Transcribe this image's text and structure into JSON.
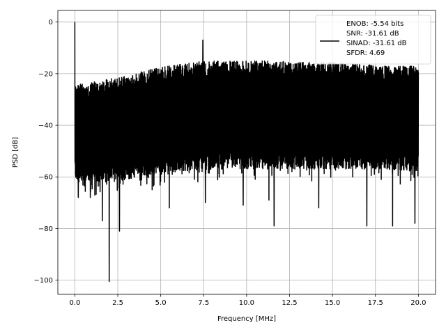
{
  "chart_data": {
    "type": "line",
    "title": "",
    "xlabel": "Frequency [MHz]",
    "ylabel": "PSD [dB]",
    "xlim": [
      -0.99,
      21.0
    ],
    "ylim": [
      -105.5,
      4.5
    ],
    "x_ticks": [
      0.0,
      2.5,
      5.0,
      7.5,
      10.0,
      12.5,
      15.0,
      17.5,
      20.0
    ],
    "x_tick_labels": [
      "0.0",
      "2.5",
      "5.0",
      "7.5",
      "10.0",
      "12.5",
      "15.0",
      "17.5",
      "20.0"
    ],
    "y_ticks": [
      0,
      -20,
      -40,
      -60,
      -80,
      -100
    ],
    "y_tick_labels": [
      "0",
      "−20",
      "−40",
      "−60",
      "−80",
      "−100"
    ],
    "grid": true,
    "legend_position": "top-right",
    "series": [
      {
        "name": "ENOB: -5.54 bits",
        "color": "#000000",
        "noise_band": {
          "x_range": [
            0.0,
            20.0
          ],
          "upper_envelope_x": [
            0.0,
            0.5,
            1.0,
            2.0,
            3.0,
            4.0,
            5.0,
            6.0,
            7.0,
            8.0,
            9.0,
            10.0,
            12.0,
            14.0,
            16.0,
            18.0,
            20.0
          ],
          "upper_envelope_y": [
            -24,
            -24,
            -23,
            -22,
            -21,
            -19,
            -17.5,
            -16.5,
            -15.5,
            -15,
            -15,
            -15,
            -15,
            -15.5,
            -16,
            -17,
            -17
          ],
          "lower_envelope_x": [
            0.0,
            2.0,
            4.0,
            6.0,
            8.0,
            10.0,
            12.0,
            14.0,
            16.0,
            18.0,
            20.0
          ],
          "lower_envelope_y": [
            -62,
            -62,
            -60,
            -58,
            -57,
            -57,
            -57,
            -57,
            -57,
            -57,
            -58
          ]
        },
        "peaks": [
          {
            "x": 0.0,
            "y": 0.0
          },
          {
            "x": 7.45,
            "y": -7.0
          }
        ],
        "dips": [
          {
            "x": 0.2,
            "y": -68
          },
          {
            "x": 0.9,
            "y": -68
          },
          {
            "x": 1.6,
            "y": -77
          },
          {
            "x": 2.0,
            "y": -100.5
          },
          {
            "x": 2.6,
            "y": -81
          },
          {
            "x": 4.5,
            "y": -65
          },
          {
            "x": 5.5,
            "y": -72
          },
          {
            "x": 7.6,
            "y": -70
          },
          {
            "x": 9.8,
            "y": -71
          },
          {
            "x": 11.3,
            "y": -69
          },
          {
            "x": 11.6,
            "y": -79
          },
          {
            "x": 14.2,
            "y": -72
          },
          {
            "x": 17.0,
            "y": -79
          },
          {
            "x": 18.5,
            "y": -79
          },
          {
            "x": 19.8,
            "y": -78
          }
        ]
      }
    ],
    "legend_entries": [
      "ENOB: -5.54 bits",
      "SNR: -31.61 dB",
      "SINAD: -31.61 dB",
      "SFDR: 4.69"
    ]
  }
}
